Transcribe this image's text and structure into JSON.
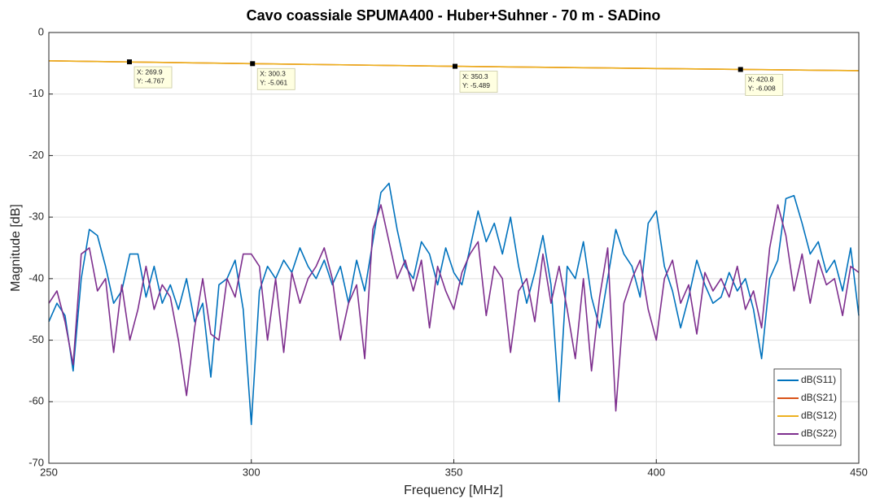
{
  "chart_data": {
    "type": "line",
    "title": "Cavo coassiale SPUMA400 - Huber+Suhner -  70 m - SADino",
    "xlabel": "Frequency [MHz]",
    "ylabel": "Magnitude [dB]",
    "x": [
      250,
      252,
      254,
      256,
      258,
      260,
      262,
      264,
      266,
      268,
      270,
      272,
      274,
      276,
      278,
      280,
      282,
      284,
      286,
      288,
      290,
      292,
      294,
      296,
      298,
      300,
      302,
      304,
      306,
      308,
      310,
      312,
      314,
      316,
      318,
      320,
      322,
      324,
      326,
      328,
      330,
      332,
      334,
      336,
      338,
      340,
      342,
      344,
      346,
      348,
      350,
      352,
      354,
      356,
      358,
      360,
      362,
      364,
      366,
      368,
      370,
      372,
      374,
      376,
      378,
      380,
      382,
      384,
      386,
      388,
      390,
      392,
      394,
      396,
      398,
      400,
      402,
      404,
      406,
      408,
      410,
      412,
      414,
      416,
      418,
      420,
      422,
      424,
      426,
      428,
      430,
      432,
      434,
      436,
      438,
      440,
      442,
      444,
      446,
      448,
      450
    ],
    "series": [
      {
        "name": "dB(S11)",
        "color": "#0072bd",
        "values": [
          -47,
          -44,
          -46,
          -55,
          -40,
          -32,
          -33,
          -38,
          -44,
          -42,
          -36,
          -36,
          -43,
          -38,
          -44,
          -41,
          -45,
          -40,
          -47,
          -44,
          -56,
          -41,
          -40,
          -37,
          -45,
          -63.7,
          -42,
          -38,
          -40,
          -37,
          -39,
          -35,
          -38,
          -40,
          -37,
          -41,
          -38,
          -44,
          -37,
          -42,
          -34,
          -26,
          -24.5,
          -32,
          -38,
          -40,
          -34,
          -36,
          -41,
          -35,
          -39,
          -41,
          -35,
          -29,
          -34,
          -31,
          -36,
          -30,
          -38,
          -44,
          -39,
          -33,
          -41,
          -60,
          -38,
          -40,
          -34,
          -43,
          -48,
          -40,
          -32,
          -36,
          -38,
          -43,
          -31,
          -29,
          -38,
          -42,
          -48,
          -43,
          -37,
          -41,
          -44,
          -43,
          -39,
          -42,
          -40,
          -45,
          -53,
          -40,
          -37,
          -27,
          -26.5,
          -31,
          -36,
          -34,
          -39,
          -37,
          -42,
          -35,
          -46
        ]
      },
      {
        "name": "dB(S21)",
        "color": "#d95319",
        "x": [
          250,
          300,
          350,
          400,
          450
        ],
        "values": [
          -4.6,
          -5.06,
          -5.49,
          -5.85,
          -6.2
        ]
      },
      {
        "name": "dB(S12)",
        "color": "#edb120",
        "x": [
          250,
          300,
          350,
          400,
          450
        ],
        "values": [
          -4.6,
          -5.06,
          -5.49,
          -5.85,
          -6.2
        ]
      },
      {
        "name": "dB(S22)",
        "color": "#7e2f8e",
        "values": [
          -44,
          -42,
          -47,
          -54,
          -36,
          -35,
          -42,
          -40,
          -52,
          -41,
          -50,
          -45,
          -38,
          -45,
          -41,
          -43,
          -50,
          -59,
          -48,
          -40,
          -49,
          -50,
          -40,
          -43,
          -36,
          -36,
          -38,
          -50,
          -40,
          -52,
          -39,
          -44,
          -40,
          -38,
          -35,
          -40,
          -50,
          -44,
          -41,
          -53,
          -32,
          -28,
          -34,
          -40,
          -37,
          -42,
          -37,
          -48,
          -38,
          -42,
          -45,
          -39,
          -36,
          -34,
          -46,
          -38,
          -40,
          -52,
          -42,
          -40,
          -47,
          -36,
          -44,
          -38,
          -45,
          -53,
          -40,
          -55,
          -43,
          -35,
          -61.5,
          -44,
          -40,
          -37,
          -45,
          -50,
          -40,
          -37,
          -44,
          -41,
          -49,
          -39,
          -42,
          -40,
          -43,
          -38,
          -45,
          -42,
          -48,
          -35,
          -28,
          -33,
          -42,
          -36,
          -44,
          -37,
          -41,
          -40,
          -46,
          -38,
          -39
        ]
      }
    ],
    "annotations": [
      {
        "x": 269.9,
        "y": -4.767,
        "text": [
          "X: 269.9",
          "Y: -4.767"
        ]
      },
      {
        "x": 300.3,
        "y": -5.061,
        "text": [
          "X: 300.3",
          "Y: -5.061"
        ]
      },
      {
        "x": 350.3,
        "y": -5.489,
        "text": [
          "X: 350.3",
          "Y: -5.489"
        ]
      },
      {
        "x": 420.8,
        "y": -6.008,
        "text": [
          "X: 420.8",
          "Y: -6.008"
        ]
      }
    ],
    "xlim": [
      250,
      450
    ],
    "ylim": [
      -70,
      0
    ],
    "xticks": [
      250,
      300,
      350,
      400,
      450
    ],
    "yticks": [
      -70,
      -60,
      -50,
      -40,
      -30,
      -20,
      -10,
      0
    ],
    "grid": true,
    "legend": "lower right"
  }
}
